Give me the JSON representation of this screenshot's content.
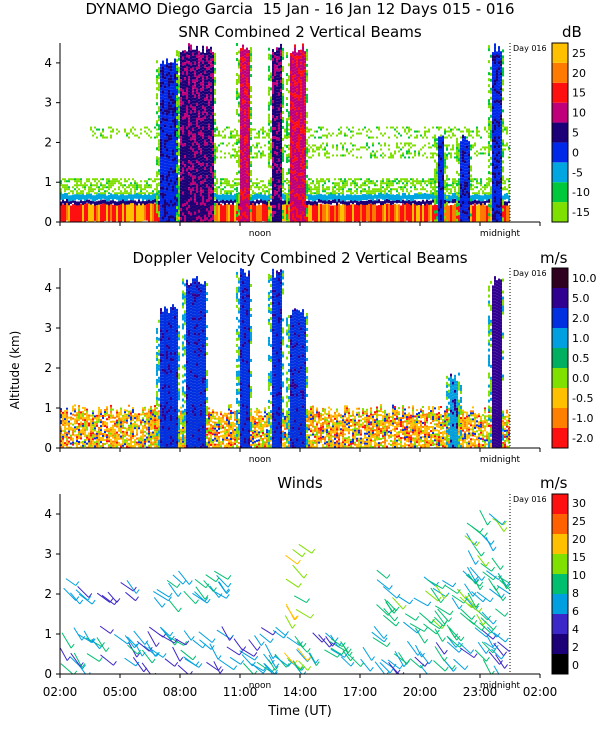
{
  "title": "DYNAMO Diego Garcia  15 Jan - 16 Jan 12 Days 015 - 016",
  "colors": {
    "scale_snr": [
      "#7fe000",
      "#00c83c",
      "#00a6e0",
      "#0028e8",
      "#1c0078",
      "#c0007a",
      "#ff1010",
      "#ff7a00",
      "#ffc000"
    ],
    "scale_vel": [
      "#ff1010",
      "#ff8000",
      "#ffc000",
      "#80e000",
      "#00b060",
      "#00a0e0",
      "#0030e0",
      "#300090",
      "#300020"
    ],
    "scale_wind": [
      "#000000",
      "#1c0078",
      "#3c28c8",
      "#00a0e0",
      "#00c070",
      "#80e000",
      "#ffc000",
      "#ff6000",
      "#ff1010"
    ]
  },
  "x_axis": {
    "label": "Time (UT)",
    "ticks": [
      "02:00",
      "05:00",
      "08:00",
      "11:00",
      "14:00",
      "17:00",
      "20:00",
      "23:00",
      "02:00"
    ],
    "day_markers": [
      "noon",
      "midnight"
    ],
    "day_label": "Day 016"
  },
  "y_axis": {
    "label": "Altitude (km)",
    "ticks": [
      "0",
      "1",
      "2",
      "3",
      "4"
    ]
  },
  "chart_data": [
    {
      "type": "heatmap",
      "title": "SNR Combined 2 Vertical Beams",
      "unit": "dB",
      "colorbar": {
        "ticks": [
          "25",
          "20",
          "15",
          "10",
          "5",
          "0",
          "-5",
          "-10",
          "-15"
        ],
        "range": [
          -17,
          30
        ]
      },
      "xlim": [
        2,
        26
      ],
      "ylim": [
        0,
        4.5
      ],
      "tick_hours": [
        2,
        5,
        8,
        11,
        14,
        17,
        20,
        23,
        26
      ],
      "day_marker_hours": [
        12,
        24
      ],
      "day_boundary_hour": 24.5,
      "boundary_layer_top_km": 0.7,
      "bands": [
        {
          "t0": 2.0,
          "t1": 24.5,
          "z0": 0.0,
          "z1": 0.45,
          "c": 6
        },
        {
          "t0": 2.0,
          "t1": 24.5,
          "z0": 0.45,
          "z1": 0.55,
          "c": 4
        },
        {
          "t0": 2.0,
          "t1": 24.5,
          "z0": 0.55,
          "z1": 0.7,
          "c": 2
        },
        {
          "t0": 2.0,
          "t1": 24.5,
          "z0": 0.7,
          "z1": 1.1,
          "c": 0
        },
        {
          "t0": 3.5,
          "t1": 24.3,
          "z0": 2.1,
          "z1": 2.4,
          "c": 0
        },
        {
          "t0": 7.0,
          "t1": 24.5,
          "z0": 1.6,
          "z1": 2.0,
          "c": 0
        }
      ],
      "columns": [
        {
          "t0": 7.0,
          "t1": 7.8,
          "z1": 4.2,
          "core": 3
        },
        {
          "t0": 8.0,
          "t1": 9.6,
          "z1": 4.5,
          "core": 4
        },
        {
          "t0": 11.0,
          "t1": 11.4,
          "z1": 4.5,
          "core": 5
        },
        {
          "t0": 12.6,
          "t1": 13.0,
          "z1": 4.5,
          "core": 4
        },
        {
          "t0": 13.5,
          "t1": 14.2,
          "z1": 4.5,
          "core": 5
        },
        {
          "t0": 20.9,
          "t1": 21.2,
          "z1": 2.2,
          "core": 3
        },
        {
          "t0": 22.0,
          "t1": 22.4,
          "z1": 2.2,
          "core": 3
        },
        {
          "t0": 23.6,
          "t1": 24.0,
          "z1": 4.5,
          "core": 3
        }
      ]
    },
    {
      "type": "heatmap",
      "title": "Doppler Velocity Combined 2 Vertical Beams",
      "unit": "m/s",
      "colorbar": {
        "ticks": [
          "10.0",
          "5.0",
          "2.0",
          "1.0",
          "0.5",
          "0.0",
          "-0.5",
          "-1.0",
          "-2.0"
        ],
        "range": [
          -3,
          12
        ]
      },
      "xlim": [
        2,
        26
      ],
      "ylim": [
        0,
        4.5
      ],
      "tick_hours": [
        2,
        5,
        8,
        11,
        14,
        17,
        20,
        23,
        26
      ],
      "day_marker_hours": [
        12,
        24
      ],
      "day_boundary_hour": 24.5,
      "boundary_layer_top_km": 0.8,
      "columns": [
        {
          "t0": 7.0,
          "t1": 7.8,
          "z1": 3.6,
          "core": 6
        },
        {
          "t0": 8.3,
          "t1": 9.2,
          "z1": 4.3,
          "core": 6
        },
        {
          "t0": 11.0,
          "t1": 11.4,
          "z1": 4.5,
          "core": 6
        },
        {
          "t0": 12.6,
          "t1": 13.0,
          "z1": 4.5,
          "core": 6
        },
        {
          "t0": 13.5,
          "t1": 14.2,
          "z1": 3.5,
          "core": 6
        },
        {
          "t0": 21.5,
          "t1": 21.8,
          "z1": 1.9,
          "core": 5
        },
        {
          "t0": 23.6,
          "t1": 24.0,
          "z1": 4.3,
          "core": 7
        }
      ]
    },
    {
      "type": "scatter",
      "title": "Winds",
      "unit": "m/s",
      "colorbar": {
        "ticks": [
          "30",
          "25",
          "20",
          "15",
          "10",
          "8",
          "6",
          "4",
          "2",
          "0"
        ],
        "range": [
          0,
          32
        ]
      },
      "xlim": [
        2,
        26
      ],
      "ylim": [
        0,
        4.5
      ],
      "tick_hours": [
        2,
        5,
        8,
        11,
        14,
        17,
        20,
        23,
        26
      ],
      "day_marker_hours": [
        12,
        24
      ],
      "day_boundary_hour": 24.5,
      "barb_layers": [
        {
          "t0": 2.0,
          "t1": 24.0,
          "z0": 0.2,
          "z1": 1.2,
          "speed": 12
        },
        {
          "t0": 2.0,
          "t1": 5.5,
          "z0": 1.9,
          "z1": 2.4,
          "speed": 9
        },
        {
          "t0": 6.0,
          "t1": 10.0,
          "z0": 1.8,
          "z1": 2.6,
          "speed": 13
        },
        {
          "t0": 13.2,
          "t1": 14.0,
          "z0": 0.3,
          "z1": 3.3,
          "speed": 20
        },
        {
          "t0": 17.5,
          "t1": 24.0,
          "z0": 1.1,
          "z1": 2.6,
          "speed": 15
        },
        {
          "t0": 22.2,
          "t1": 23.8,
          "z0": 2.0,
          "z1": 4.2,
          "speed": 15
        }
      ]
    }
  ]
}
